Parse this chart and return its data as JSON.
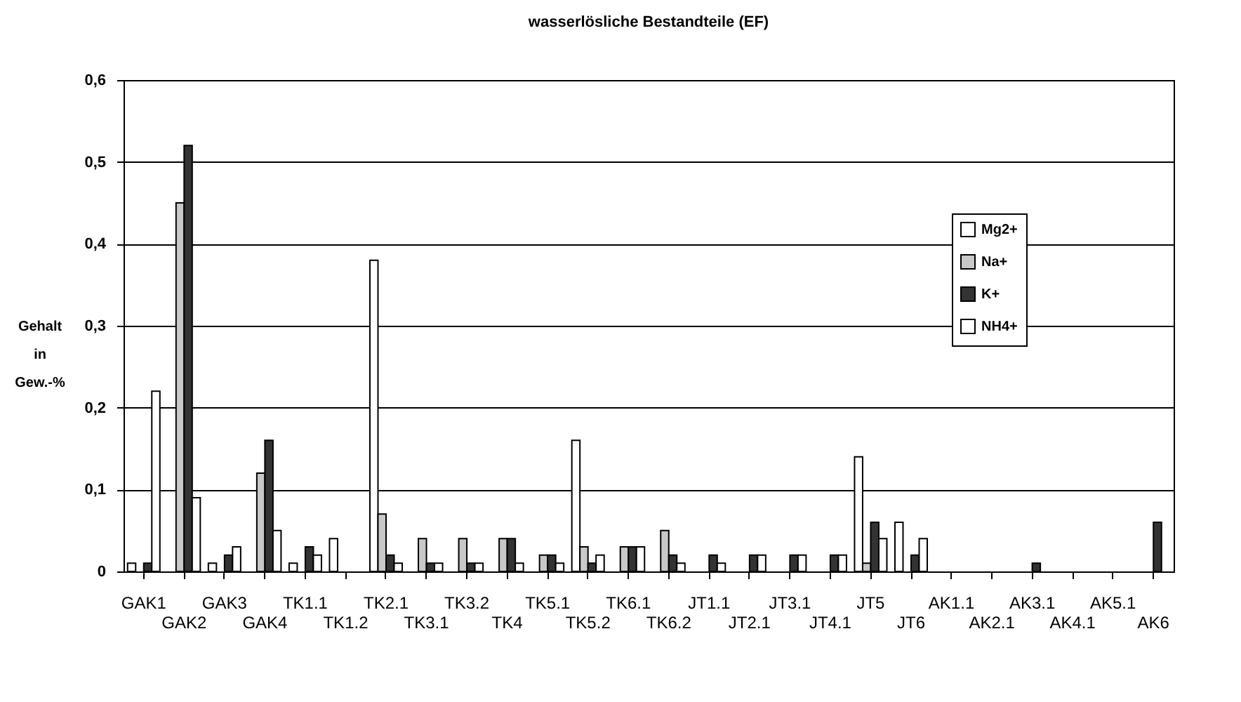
{
  "chart_data": {
    "type": "bar",
    "title": "wasserlösliche Bestandteile (EF)",
    "ylabel": "Gehalt in Gew.-%",
    "categories": [
      "GAK1",
      "GAK2",
      "GAK3",
      "GAK4",
      "TK1.1",
      "TK1.2",
      "TK2.1",
      "TK3.1",
      "TK3.2",
      "TK4",
      "TK5.1",
      "TK5.2",
      "TK6.1",
      "TK6.2",
      "JT1.1",
      "JT2.1",
      "JT3.1",
      "JT4.1",
      "JT5",
      "JT6",
      "AK1.1",
      "AK2.1",
      "AK3.1",
      "AK4.1",
      "AK5.1",
      "AK6"
    ],
    "series": [
      {
        "name": "Mg2+",
        "color": "#ffffff",
        "values": [
          0.01,
          null,
          0.01,
          null,
          0.01,
          0.04,
          0.38,
          null,
          null,
          null,
          null,
          0.16,
          null,
          null,
          null,
          null,
          null,
          null,
          0.14,
          0.06,
          null,
          null,
          null,
          null,
          null,
          null
        ]
      },
      {
        "name": "Na+",
        "color": "#c8c8c8",
        "values": [
          null,
          0.45,
          null,
          0.12,
          null,
          null,
          0.07,
          0.04,
          0.04,
          0.04,
          0.02,
          0.03,
          0.03,
          0.05,
          null,
          null,
          null,
          null,
          0.01,
          null,
          null,
          null,
          null,
          null,
          null,
          null
        ]
      },
      {
        "name": "K+",
        "color": "#333333",
        "values": [
          0.01,
          0.52,
          0.02,
          0.16,
          0.03,
          null,
          0.02,
          0.01,
          0.01,
          0.04,
          0.02,
          0.01,
          0.03,
          0.02,
          0.02,
          0.02,
          0.02,
          0.02,
          0.06,
          0.02,
          null,
          null,
          0.01,
          null,
          null,
          0.06
        ]
      },
      {
        "name": "NH4+",
        "color": "#ffffff",
        "values": [
          0.22,
          0.09,
          0.03,
          0.05,
          0.02,
          null,
          0.01,
          0.01,
          0.01,
          0.01,
          0.01,
          0.02,
          0.03,
          0.01,
          0.01,
          0.02,
          0.02,
          0.02,
          0.04,
          0.04,
          null,
          null,
          null,
          null,
          null,
          null
        ]
      }
    ],
    "ylim": [
      0,
      0.6
    ],
    "yticks": [
      0,
      {
        "value": 0.1,
        "label": "0,1"
      },
      {
        "value": 0.2,
        "label": "0,2"
      },
      {
        "value": 0.3,
        "label": "0,3"
      },
      {
        "value": 0.4,
        "label": "0,4"
      },
      {
        "value": 0.5,
        "label": "0,5"
      },
      {
        "value": 0.6,
        "label": "0,6"
      }
    ],
    "grid": "y",
    "legend": "right"
  }
}
